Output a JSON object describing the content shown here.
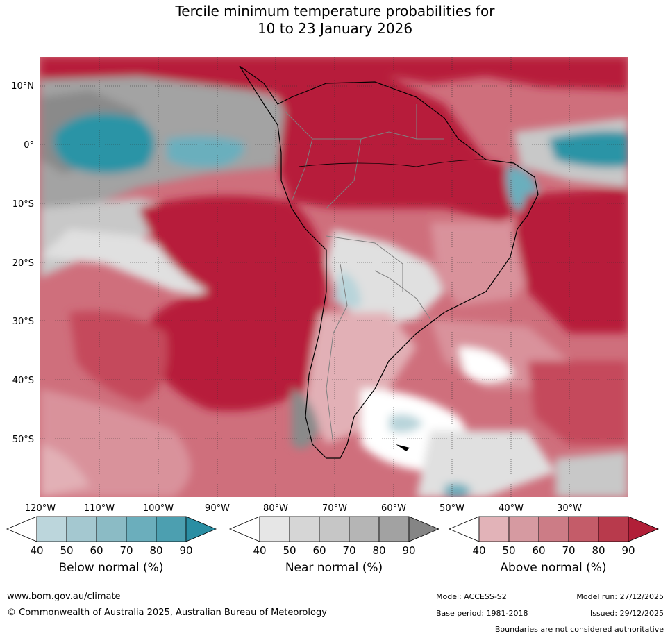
{
  "title": {
    "line1": "Tercile minimum temperature probabilities for",
    "line2": "10 to 23 January 2026"
  },
  "map": {
    "lat_labels": [
      "10°N",
      "0°",
      "10°S",
      "20°S",
      "30°S",
      "40°S",
      "50°S"
    ],
    "lon_labels": [
      "120°W",
      "110°W",
      "100°W",
      "90°W",
      "80°W",
      "70°W",
      "60°W",
      "50°W",
      "40°W",
      "30°W"
    ],
    "colors": {
      "ocean_above_high": "#b71c3a",
      "above_80": "#c54a5c",
      "above_70": "#cf6f7c",
      "above_60": "#d9929b",
      "above_50": "#e2b0b6",
      "near_90": "#8a8a8a",
      "near_80": "#a3a3a3",
      "near_60": "#c8c8c8",
      "near_50": "#e0e0e0",
      "below_90": "#2a94a6",
      "below_70": "#6aafbd",
      "below_50": "#b8d4da"
    }
  },
  "legends": [
    {
      "label": "Below normal (%)",
      "ticks": [
        "40",
        "50",
        "60",
        "70",
        "80",
        "90"
      ],
      "colors": [
        "#ffffff",
        "#bcd6dc",
        "#a4c8d0",
        "#8bbbc5",
        "#6baebc",
        "#4c9fb0",
        "#2a8ea3"
      ]
    },
    {
      "label": "Near normal (%)",
      "ticks": [
        "40",
        "50",
        "60",
        "70",
        "80",
        "90"
      ],
      "colors": [
        "#ffffff",
        "#e6e6e6",
        "#d6d6d6",
        "#c6c6c6",
        "#b5b5b5",
        "#a2a2a2",
        "#858585"
      ]
    },
    {
      "label": "Above normal (%)",
      "ticks": [
        "40",
        "50",
        "60",
        "70",
        "80",
        "90"
      ],
      "colors": [
        "#ffffff",
        "#e2b3b8",
        "#d69aa1",
        "#cc7c86",
        "#c45c69",
        "#b83a4c",
        "#b11f38"
      ]
    }
  ],
  "footer": {
    "website": "www.bom.gov.au/climate",
    "copyright": "© Commonwealth of Australia 2025, Australian Bureau of Meteorology",
    "model": "Model: ACCESS-S2",
    "model_run": "Model run: 27/12/2025",
    "base_period": "Base period: 1981-2018",
    "issued": "Issued: 29/12/2025",
    "disclaimer": "Boundaries are not considered authoritative"
  }
}
